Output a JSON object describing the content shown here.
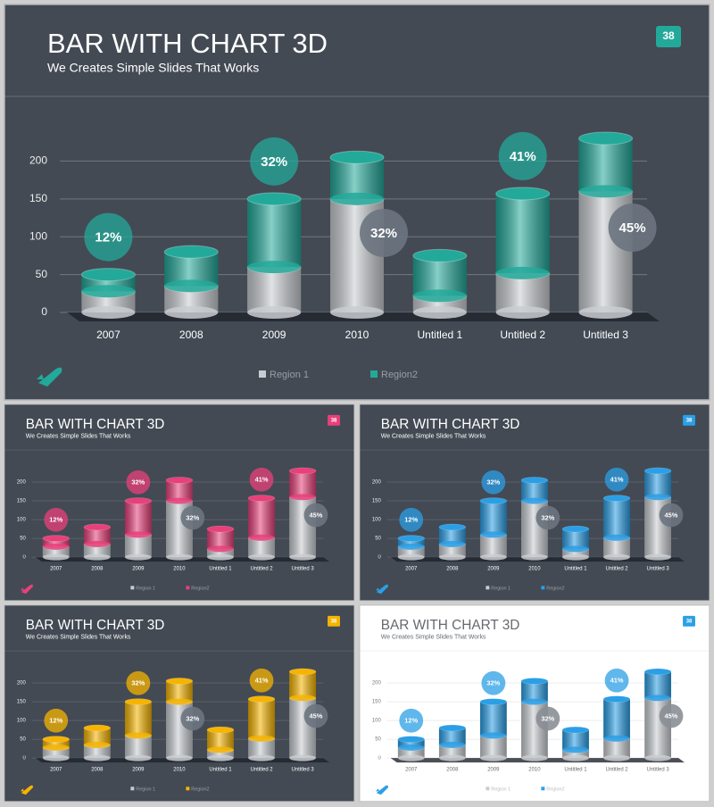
{
  "chart_data": [
    {
      "type": "bar",
      "title": "BAR WITH CHART 3D",
      "subtitle": "We Creates Simple Slides That Works",
      "page_number": 38,
      "background": "#434a54",
      "text_color": "#ffffff",
      "categories": [
        "2007",
        "2008",
        "2009",
        "2010",
        "Untitled 1",
        "Untitled 2",
        "Untitled 3"
      ],
      "series": [
        {
          "name": "Region 1",
          "color": "#c9cdd1",
          "values": [
            28,
            35,
            60,
            150,
            22,
            52,
            160
          ]
        },
        {
          "name": "Region2",
          "color": "#23a99a",
          "values": [
            22,
            45,
            90,
            55,
            53,
            105,
            70
          ]
        }
      ],
      "stacked": true,
      "ylim": [
        0,
        230
      ],
      "yticks": [
        0,
        50,
        100,
        150,
        200
      ],
      "grid": true,
      "annotations": [
        {
          "text": "12%",
          "category": "2007",
          "color": "#23a99a"
        },
        {
          "text": "32%",
          "category": "2009",
          "color": "#23a99a"
        },
        {
          "text": "32%",
          "category": "2010",
          "color": "#6c7480"
        },
        {
          "text": "41%",
          "category": "Untitled 2",
          "color": "#23a99a"
        },
        {
          "text": "45%",
          "category": "Untitled 3",
          "color": "#6c7480"
        }
      ]
    },
    {
      "type": "bar",
      "title": "BAR WITH CHART 3D",
      "subtitle": "We Creates Simple Slides That Works",
      "page_number": 38,
      "background": "#434a54",
      "text_color": "#ffffff",
      "categories": [
        "2007",
        "2008",
        "2009",
        "2010",
        "Untitled 1",
        "Untitled 2",
        "Untitled 3"
      ],
      "series": [
        {
          "name": "Region 1",
          "color": "#c9cdd1",
          "values": [
            28,
            35,
            60,
            150,
            22,
            52,
            160
          ]
        },
        {
          "name": "Region2",
          "color": "#e8407a",
          "values": [
            22,
            45,
            90,
            55,
            53,
            105,
            70
          ]
        }
      ],
      "stacked": true,
      "ylim": [
        0,
        230
      ],
      "yticks": [
        0,
        50,
        100,
        150,
        200
      ],
      "grid": true,
      "annotations": [
        {
          "text": "12%",
          "category": "2007",
          "color": "#e8407a"
        },
        {
          "text": "32%",
          "category": "2009",
          "color": "#e8407a"
        },
        {
          "text": "32%",
          "category": "2010",
          "color": "#6c7480"
        },
        {
          "text": "41%",
          "category": "Untitled 2",
          "color": "#e8407a"
        },
        {
          "text": "45%",
          "category": "Untitled 3",
          "color": "#6c7480"
        }
      ]
    },
    {
      "type": "bar",
      "title": "BAR WITH CHART 3D",
      "subtitle": "We Creates Simple Slides That Works",
      "page_number": 38,
      "background": "#434a54",
      "text_color": "#ffffff",
      "categories": [
        "2007",
        "2008",
        "2009",
        "2010",
        "Untitled 1",
        "Untitled 2",
        "Untitled 3"
      ],
      "series": [
        {
          "name": "Region 1",
          "color": "#c9cdd1",
          "values": [
            28,
            35,
            60,
            150,
            22,
            52,
            160
          ]
        },
        {
          "name": "Region2",
          "color": "#2b9fe6",
          "values": [
            22,
            45,
            90,
            55,
            53,
            105,
            70
          ]
        }
      ],
      "stacked": true,
      "ylim": [
        0,
        230
      ],
      "yticks": [
        0,
        50,
        100,
        150,
        200
      ],
      "grid": true,
      "annotations": [
        {
          "text": "12%",
          "category": "2007",
          "color": "#2b9fe6"
        },
        {
          "text": "32%",
          "category": "2009",
          "color": "#2b9fe6"
        },
        {
          "text": "32%",
          "category": "2010",
          "color": "#6c7480"
        },
        {
          "text": "41%",
          "category": "Untitled 2",
          "color": "#2b9fe6"
        },
        {
          "text": "45%",
          "category": "Untitled 3",
          "color": "#6c7480"
        }
      ]
    },
    {
      "type": "bar",
      "title": "BAR WITH CHART 3D",
      "subtitle": "We Creates Simple Slides That Works",
      "page_number": 38,
      "background": "#434a54",
      "text_color": "#ffffff",
      "categories": [
        "2007",
        "2008",
        "2009",
        "2010",
        "Untitled 1",
        "Untitled 2",
        "Untitled 3"
      ],
      "series": [
        {
          "name": "Region 1",
          "color": "#c9cdd1",
          "values": [
            28,
            35,
            60,
            150,
            22,
            52,
            160
          ]
        },
        {
          "name": "Region2",
          "color": "#f6b400",
          "values": [
            22,
            45,
            90,
            55,
            53,
            105,
            70
          ]
        }
      ],
      "stacked": true,
      "ylim": [
        0,
        230
      ],
      "yticks": [
        0,
        50,
        100,
        150,
        200
      ],
      "grid": true,
      "annotations": [
        {
          "text": "12%",
          "category": "2007",
          "color": "#f6b400"
        },
        {
          "text": "32%",
          "category": "2009",
          "color": "#f6b400"
        },
        {
          "text": "32%",
          "category": "2010",
          "color": "#6c7480"
        },
        {
          "text": "41%",
          "category": "Untitled 2",
          "color": "#f6b400"
        },
        {
          "text": "45%",
          "category": "Untitled 3",
          "color": "#6c7480"
        }
      ]
    },
    {
      "type": "bar",
      "title": "BAR WITH CHART 3D",
      "subtitle": "We Creates Simple Slides That Works",
      "page_number": 38,
      "background": "#ffffff",
      "text_color": "#666a70",
      "categories": [
        "2007",
        "2008",
        "2009",
        "2010",
        "Untitled 1",
        "Untitled 2",
        "Untitled 3"
      ],
      "series": [
        {
          "name": "Region 1",
          "color": "#c9cdd1",
          "values": [
            28,
            35,
            60,
            150,
            22,
            52,
            160
          ]
        },
        {
          "name": "Region2",
          "color": "#2b9fe6",
          "values": [
            22,
            45,
            90,
            55,
            53,
            105,
            70
          ]
        }
      ],
      "stacked": true,
      "ylim": [
        0,
        230
      ],
      "yticks": [
        0,
        50,
        100,
        150,
        200
      ],
      "grid": true,
      "annotations": [
        {
          "text": "12%",
          "category": "2007",
          "color": "#2b9fe6"
        },
        {
          "text": "32%",
          "category": "2009",
          "color": "#2b9fe6"
        },
        {
          "text": "32%",
          "category": "2010",
          "color": "#8a8f96"
        },
        {
          "text": "41%",
          "category": "Untitled 2",
          "color": "#2b9fe6"
        },
        {
          "text": "45%",
          "category": "Untitled 3",
          "color": "#8a8f96"
        }
      ]
    }
  ]
}
